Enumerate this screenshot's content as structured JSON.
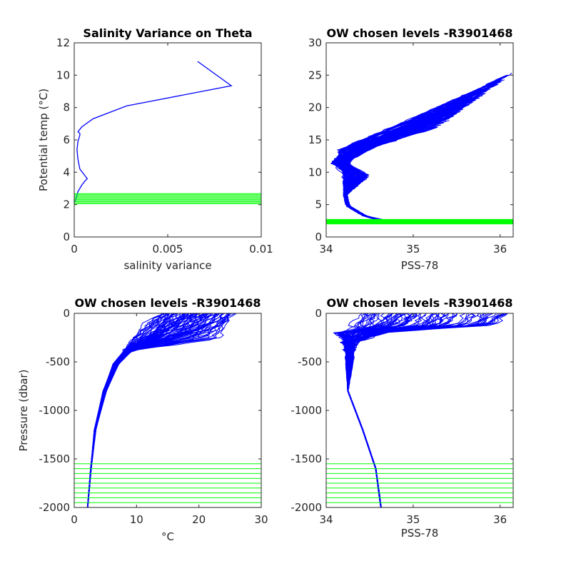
{
  "figure": {
    "background": "#ffffff"
  },
  "colors": {
    "profile": "#0000ff",
    "chosen_levels": "#00ff00",
    "axis": "#262626"
  },
  "chart_data": [
    {
      "id": "p1",
      "type": "line",
      "title": "Salinity Variance on Theta",
      "xlabel": "salinity variance",
      "ylabel": "Potential temp (°C)",
      "xlim": [
        0,
        0.01
      ],
      "ylim": [
        0,
        12
      ],
      "x_ticks": [
        0,
        0.005,
        0.01
      ],
      "x_tick_labels": [
        "0",
        "0.005",
        "0.01"
      ],
      "y_ticks": [
        0,
        2,
        4,
        6,
        8,
        10,
        12
      ],
      "y_tick_labels": [
        "0",
        "2",
        "4",
        "6",
        "8",
        "10",
        "12"
      ],
      "grid": false,
      "series": [
        {
          "x": [
            0,
            0.0001,
            0.0002,
            0.0004,
            0.0006,
            0.0007,
            0.0005,
            0.0003,
            0.0002,
            0.00015,
            0.0002,
            0.0003,
            0.0003,
            0.0002,
            0.0004,
            0.001,
            0.0028,
            0.0084,
            0.0066
          ],
          "y": [
            2.1,
            2.4,
            2.8,
            3.2,
            3.5,
            3.6,
            3.9,
            4.2,
            4.8,
            5.4,
            5.9,
            6.3,
            6.4,
            6.5,
            6.8,
            7.3,
            8.1,
            9.35,
            10.85
          ]
        }
      ],
      "chosen_levels": [
        2.05,
        2.12,
        2.19,
        2.26,
        2.33,
        2.4,
        2.47,
        2.54,
        2.61,
        2.68
      ]
    },
    {
      "id": "p2",
      "type": "line",
      "title": "OW chosen levels -R3901468",
      "xlabel": "PSS-78",
      "ylabel": "",
      "xlim": [
        34,
        36.15
      ],
      "ylim": [
        0,
        30
      ],
      "x_ticks": [
        34,
        35,
        36
      ],
      "x_tick_labels": [
        "34",
        "35",
        "36"
      ],
      "y_ticks": [
        0,
        5,
        10,
        15,
        20,
        25,
        30
      ],
      "y_tick_labels": [
        "0",
        "5",
        "10",
        "15",
        "20",
        "25",
        "30"
      ],
      "grid": false,
      "chosen_levels": [
        2.05,
        2.12,
        2.19,
        2.26,
        2.33,
        2.4,
        2.47,
        2.54,
        2.61,
        2.68
      ]
    },
    {
      "id": "p3",
      "type": "line",
      "title": "OW chosen levels -R3901468",
      "xlabel": "°C",
      "ylabel": "Pressure (dbar)",
      "xlim": [
        0,
        30
      ],
      "ylim": [
        -2000,
        0
      ],
      "x_ticks": [
        0,
        10,
        20,
        30
      ],
      "x_tick_labels": [
        "0",
        "10",
        "20",
        "30"
      ],
      "y_ticks": [
        -2000,
        -1500,
        -1000,
        -500,
        0
      ],
      "y_tick_labels": [
        "-2000",
        "-1500",
        "-1000",
        "-500",
        "0"
      ],
      "grid": false,
      "chosen_levels": [
        -1550,
        -1600,
        -1650,
        -1700,
        -1750,
        -1800,
        -1850,
        -1900,
        -1950,
        -2000
      ]
    },
    {
      "id": "p4",
      "type": "line",
      "title": "OW chosen levels -R3901468",
      "xlabel": "PSS-78",
      "ylabel": "",
      "xlim": [
        34,
        36.15
      ],
      "ylim": [
        -2000,
        0
      ],
      "x_ticks": [
        34,
        35,
        36
      ],
      "x_tick_labels": [
        "34",
        "35",
        "36"
      ],
      "y_ticks": [
        -2000,
        -1500,
        -1000,
        -500,
        0
      ],
      "y_tick_labels": [
        "-2000",
        "-1500",
        "-1000",
        "-500",
        "0"
      ],
      "grid": false,
      "chosen_levels": [
        -1550,
        -1600,
        -1650,
        -1700,
        -1750,
        -1800,
        -1850,
        -1900,
        -1950,
        -2000
      ]
    }
  ]
}
